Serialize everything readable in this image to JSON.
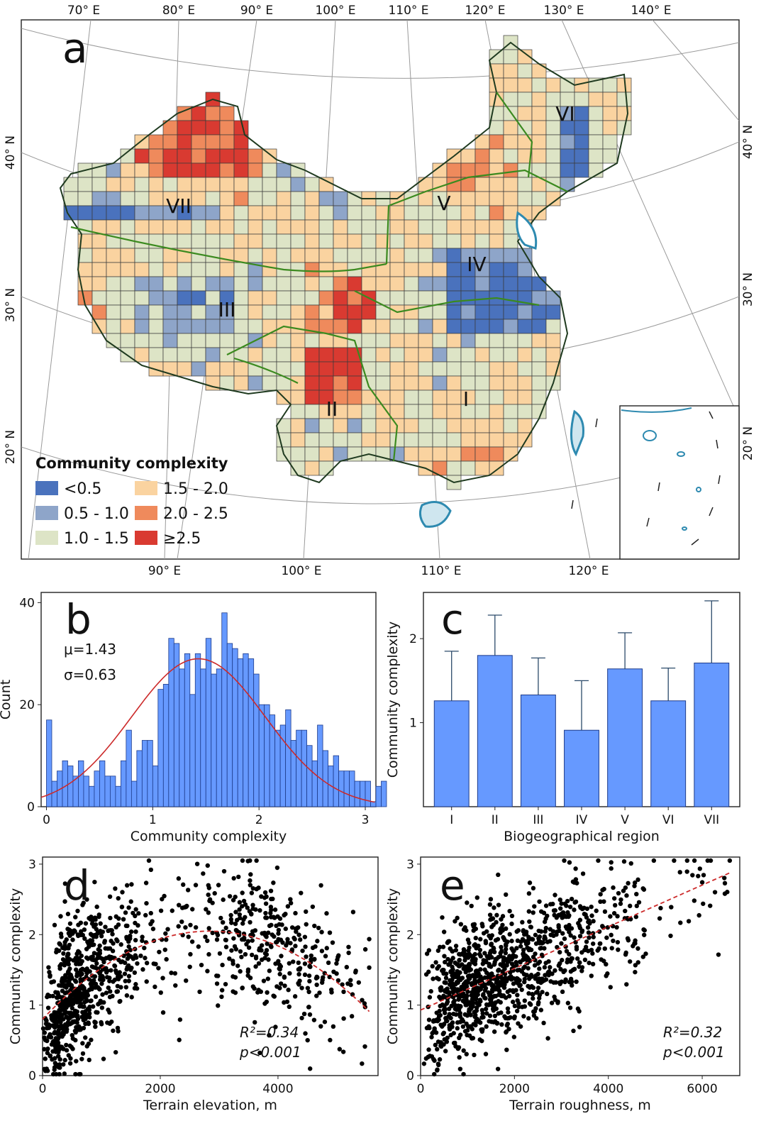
{
  "colors": {
    "lt05": "#4a72bd",
    "c05_10": "#8ea5c9",
    "c10_15": "#dde4c6",
    "c15_20": "#fad3a0",
    "c20_25": "#ef8a5c",
    "ge25": "#d93a31",
    "bar": "#6699ff",
    "fit": "#cc2a2a",
    "point": "#000000",
    "coast": "#2e8ab0",
    "boundary": "#3b8a1f"
  },
  "map": {
    "panel_label": "a",
    "top_lon_labels": [
      "70° E",
      "80° E",
      "90° E",
      "100° E",
      "110° E",
      "120° E",
      "130° E",
      "140° E"
    ],
    "bottom_lon_labels": [
      "90° E",
      "100° E",
      "110° E",
      "120° E"
    ],
    "left_lat_labels": [
      "40° N",
      "30° N",
      "20° N"
    ],
    "right_lat_labels": [
      "40° N",
      "30° N",
      "20° N"
    ],
    "regions": [
      "I",
      "II",
      "III",
      "IV",
      "V",
      "VI",
      "VII"
    ],
    "legend": {
      "title": "Community complexity",
      "items": [
        "<0.5",
        "1.5 - 2.0",
        "0.5 - 1.0",
        "2.0 - 2.5",
        "1.0 - 1.5",
        "≥2.5"
      ]
    }
  },
  "panel_b": {
    "panel_label": "b",
    "mu_label": "μ=1.43",
    "sigma_label": "σ=0.63"
  },
  "panel_c": {
    "panel_label": "c"
  },
  "panel_d": {
    "panel_label": "d",
    "r2_label": "R²=0.34",
    "p_label": "p<0.001"
  },
  "panel_e": {
    "panel_label": "e",
    "r2_label": "R²=0.32",
    "p_label": "p<0.001"
  },
  "chart_data": [
    {
      "id": "b",
      "type": "bar",
      "subtype": "histogram",
      "xlabel": "Community complexity",
      "ylabel": "Count",
      "xlim": [
        -0.05,
        3.1
      ],
      "ylim": [
        0,
        42
      ],
      "xticks": [
        "0",
        "1",
        "2",
        "3"
      ],
      "yticks": [
        "0",
        "20",
        "40"
      ],
      "bin_width": 0.05,
      "bin_start": 0,
      "counts": [
        17,
        5,
        7,
        9,
        8,
        6,
        9,
        6,
        4,
        7,
        9,
        6,
        6,
        4,
        9,
        15,
        5,
        11,
        13,
        13,
        8,
        23,
        24,
        33,
        32,
        27,
        30,
        22,
        30,
        27,
        33,
        26,
        27,
        38,
        32,
        31,
        29,
        30,
        29,
        26,
        20,
        20,
        18,
        15,
        16,
        19,
        13,
        15,
        15,
        12,
        9,
        16,
        11,
        8,
        10,
        7,
        7,
        7,
        5,
        5,
        5,
        1,
        4,
        5
      ],
      "fit": {
        "type": "normal",
        "mu": 1.43,
        "sigma": 0.63,
        "peak": 29
      }
    },
    {
      "id": "c",
      "type": "bar",
      "xlabel": "Biogeographical region",
      "ylabel": "Community complexity",
      "categories": [
        "I",
        "II",
        "III",
        "IV",
        "V",
        "VI",
        "VII"
      ],
      "values": [
        1.26,
        1.8,
        1.33,
        0.91,
        1.64,
        1.26,
        1.71
      ],
      "error_upper": [
        1.85,
        2.28,
        1.77,
        1.5,
        2.07,
        1.65,
        2.45
      ],
      "ylim": [
        0,
        2.55
      ],
      "yticks": [
        "1",
        "2"
      ]
    },
    {
      "id": "d",
      "type": "scatter",
      "xlabel": "Terrain elevation, m",
      "ylabel": "Community complexity",
      "xlim": [
        0,
        5700
      ],
      "ylim": [
        0,
        3.1
      ],
      "xticks": [
        "0",
        "2000",
        "4000"
      ],
      "yticks": [
        "0",
        "1",
        "2",
        "3"
      ],
      "n_points": 1100,
      "fit": {
        "type": "quadratic",
        "x": [
          0,
          1000,
          2000,
          2800,
          4000,
          5000,
          5500
        ],
        "y": [
          0.8,
          1.6,
          1.98,
          2.06,
          1.75,
          1.15,
          0.78
        ]
      }
    },
    {
      "id": "e",
      "type": "scatter",
      "xlabel": "Terrain roughness, m",
      "ylabel": "Community complexity",
      "xlim": [
        0,
        6800
      ],
      "ylim": [
        0,
        3.1
      ],
      "xticks": [
        "0",
        "2000",
        "4000",
        "6000"
      ],
      "yticks": [
        "0",
        "1",
        "2",
        "3"
      ],
      "n_points": 1100,
      "fit": {
        "type": "linear",
        "x": [
          0,
          6600
        ],
        "y": [
          0.93,
          2.88
        ]
      }
    }
  ]
}
